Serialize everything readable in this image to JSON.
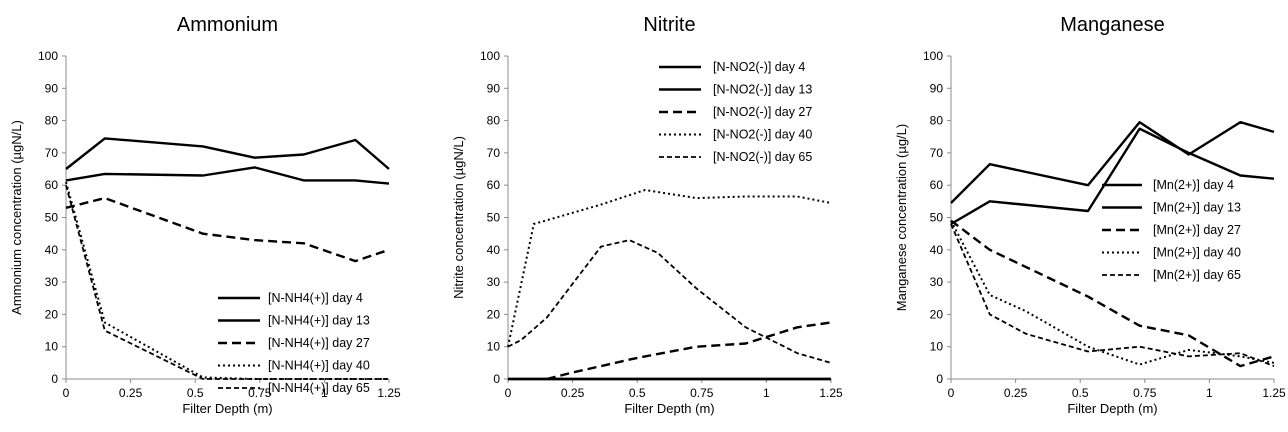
{
  "chart_data": [
    {
      "type": "line",
      "title": "Ammonium",
      "xlabel": "Filter Depth (m)",
      "ylabel": "Ammonium concentration (µgN/L)",
      "xlim": [
        0,
        1.25
      ],
      "ylim": [
        0,
        100
      ],
      "xticks": [
        "0",
        "0.25",
        "0.5",
        "0.75",
        "1",
        "1.25"
      ],
      "yticks": [
        "0",
        "10",
        "20",
        "30",
        "40",
        "50",
        "60",
        "70",
        "80",
        "90",
        "100"
      ],
      "grid": false,
      "legend_position": "bottom-right",
      "series": [
        {
          "name": "[N-NH4(+)] day 4",
          "style": "solid",
          "x": [
            0,
            0.15,
            0.53,
            0.73,
            0.92,
            1.12,
            1.25
          ],
          "y": [
            65,
            74.5,
            72,
            68.5,
            69.5,
            74,
            65
          ]
        },
        {
          "name": "[N-NH4(+)] day 13",
          "style": "solid",
          "x": [
            0,
            0.15,
            0.53,
            0.73,
            0.92,
            1.12,
            1.25
          ],
          "y": [
            61.5,
            63.5,
            63,
            65.5,
            61.5,
            61.5,
            60.5
          ]
        },
        {
          "name": "[N-NH4(+)] day 27",
          "style": "dashed",
          "x": [
            0,
            0.15,
            0.53,
            0.73,
            0.92,
            1.12,
            1.25
          ],
          "y": [
            53,
            56,
            45,
            43,
            42,
            36.5,
            40
          ]
        },
        {
          "name": "[N-NH4(+)] day 40",
          "style": "dotted",
          "x": [
            0,
            0.15,
            0.53,
            0.73,
            0.92,
            1.12,
            1.25
          ],
          "y": [
            61,
            17.5,
            0.5,
            0,
            0,
            0,
            0
          ]
        },
        {
          "name": "[N-NH4(+)] day 65",
          "style": "shortdash",
          "x": [
            0,
            0.15,
            0.53,
            0.73,
            0.92,
            1.12,
            1.25
          ],
          "y": [
            60,
            15,
            0,
            0,
            0,
            0,
            0
          ]
        }
      ]
    },
    {
      "type": "line",
      "title": "Nitrite",
      "xlabel": "Filter Depth (m)",
      "ylabel": "Nitrite concentration (µgN/L)",
      "xlim": [
        0,
        1.25
      ],
      "ylim": [
        0,
        100
      ],
      "xticks": [
        "0",
        "0.25",
        "0.5",
        "0.75",
        "1",
        "1.25"
      ],
      "yticks": [
        "0",
        "10",
        "20",
        "30",
        "40",
        "50",
        "60",
        "70",
        "80",
        "90",
        "100"
      ],
      "grid": false,
      "legend_position": "top-right",
      "series": [
        {
          "name": "[N-NO2(-)] day 4",
          "style": "solid",
          "x": [
            0,
            0.15,
            0.36,
            0.47,
            0.53,
            0.73,
            0.92,
            1.12,
            1.25
          ],
          "y": [
            0,
            0,
            0,
            0,
            0,
            0,
            0,
            0,
            0
          ]
        },
        {
          "name": "[N-NO2(-)] day 13",
          "style": "solid",
          "x": [
            0,
            0.15,
            0.36,
            0.47,
            0.53,
            0.73,
            0.92,
            1.12,
            1.25
          ],
          "y": [
            0,
            0,
            0,
            0,
            0,
            0,
            0,
            0,
            0
          ]
        },
        {
          "name": "[N-NO2(-)] day 27",
          "style": "dashed",
          "x": [
            0.15,
            0.25,
            0.36,
            0.47,
            0.53,
            0.73,
            0.92,
            1.12,
            1.25
          ],
          "y": [
            0,
            2,
            4,
            6,
            7,
            10,
            11,
            16,
            17.5
          ]
        },
        {
          "name": "[N-NO2(-)] day 40",
          "style": "dotted",
          "x": [
            0,
            0.1,
            0.36,
            0.53,
            0.73,
            0.92,
            1.12,
            1.25
          ],
          "y": [
            10,
            48,
            54,
            58.5,
            56,
            56.5,
            56.5,
            54.5
          ]
        },
        {
          "name": "[N-NO2(-)] day 65",
          "style": "shortdash",
          "x": [
            0,
            0.05,
            0.15,
            0.36,
            0.47,
            0.58,
            0.73,
            0.92,
            1.12,
            1.25
          ],
          "y": [
            10,
            12,
            19,
            41,
            43,
            39,
            28,
            16,
            8,
            5
          ]
        }
      ]
    },
    {
      "type": "line",
      "title": "Manganese",
      "xlabel": "Filter Depth (m)",
      "ylabel": "Manganese concentration (µg/L)",
      "xlim": [
        0,
        1.25
      ],
      "ylim": [
        0,
        100
      ],
      "xticks": [
        "0",
        "0.25",
        "0.5",
        "0.75",
        "1",
        "1.25"
      ],
      "yticks": [
        "0",
        "10",
        "20",
        "30",
        "40",
        "50",
        "60",
        "70",
        "80",
        "90",
        "100"
      ],
      "grid": false,
      "legend_position": "center-right",
      "series": [
        {
          "name": "[Mn(2+)] day 4",
          "style": "solid",
          "x": [
            0,
            0.15,
            0.53,
            0.73,
            0.92,
            1.12,
            1.25
          ],
          "y": [
            54.5,
            66.5,
            60,
            79.5,
            69.5,
            79.5,
            76.5
          ]
        },
        {
          "name": "[Mn(2+)] day 13",
          "style": "solid",
          "x": [
            0,
            0.15,
            0.53,
            0.73,
            0.92,
            1.12,
            1.25
          ],
          "y": [
            48,
            55,
            52,
            77.5,
            70,
            63,
            62
          ]
        },
        {
          "name": "[Mn(2+)] day 27",
          "style": "dashed",
          "x": [
            0,
            0.15,
            0.53,
            0.73,
            0.92,
            1.12,
            1.25
          ],
          "y": [
            49,
            40,
            25.5,
            16.5,
            13.5,
            4,
            7
          ]
        },
        {
          "name": "[Mn(2+)] day 40",
          "style": "dotted",
          "x": [
            0,
            0.15,
            0.29,
            0.53,
            0.73,
            0.92,
            1.12,
            1.25
          ],
          "y": [
            49,
            26,
            21,
            10,
            4.5,
            9,
            7,
            5
          ]
        },
        {
          "name": "[Mn(2+)] day 65",
          "style": "shortdash",
          "x": [
            0,
            0.15,
            0.29,
            0.53,
            0.73,
            0.92,
            1.12,
            1.25
          ],
          "y": [
            48,
            20,
            14,
            8.5,
            10,
            7,
            8,
            4
          ]
        }
      ]
    }
  ]
}
